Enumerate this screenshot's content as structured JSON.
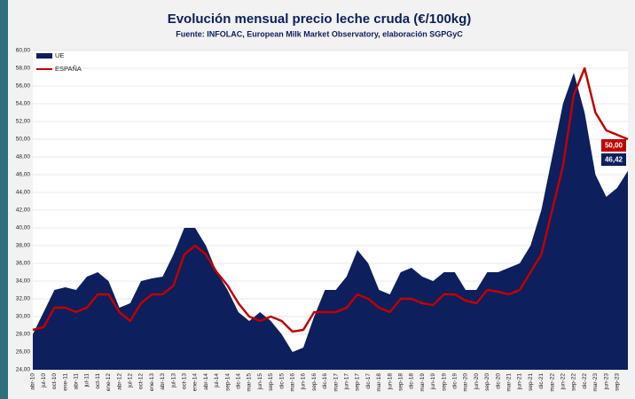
{
  "chart_data": {
    "type": "area_line",
    "title": "Evolución mensual precio leche cruda (€/100kg)",
    "subtitle": "Fuente: INFOLAC, European Milk Market Observatory,  elaboración SGPGyC",
    "categories": [
      "abr-10",
      "jul-10",
      "oct-10",
      "ene-11",
      "abr-11",
      "jul-11",
      "oct-11",
      "ene-12",
      "abr-12",
      "jul-12",
      "oct-12",
      "ene-13",
      "abr-13",
      "jul-13",
      "oct-13",
      "ene-14",
      "abr-14",
      "jul-14",
      "sep-14",
      "dic-14",
      "mar-15",
      "jun-15",
      "sep-15",
      "dic-15",
      "mar-16",
      "jun-16",
      "sep-16",
      "dic-16",
      "mar-17",
      "jun-17",
      "sep-17",
      "dic-17",
      "mar-18",
      "jun-18",
      "sep-18",
      "dic-18",
      "mar-19",
      "jun-19",
      "sep-19",
      "dic-19",
      "mar-20",
      "jun-20",
      "sep-20",
      "dic-20",
      "mar-21",
      "jun-21",
      "sep-21",
      "dic-21",
      "mar-22",
      "jun-22",
      "sep-22",
      "dic-22",
      "mar-23",
      "jun-23",
      "sep-23",
      null
    ],
    "series": [
      {
        "name": "UE",
        "color": "#0d1f5c",
        "kind": "area",
        "values": [
          28.0,
          30.5,
          33,
          33.3,
          33,
          34.5,
          35,
          34,
          31,
          31.5,
          34,
          34.3,
          34.5,
          37,
          40,
          40,
          38,
          35,
          33,
          30.5,
          29.5,
          30.5,
          29.5,
          28,
          26,
          26.5,
          30,
          33,
          33,
          34.5,
          37.5,
          36,
          33,
          32.5,
          35,
          35.5,
          34.5,
          34,
          35,
          35,
          33,
          33,
          35,
          35,
          35.5,
          36,
          38,
          42,
          48,
          54,
          57.5,
          53,
          46,
          43.5,
          44.5,
          46.42
        ],
        "value_labels": [
          null,
          null,
          null,
          null,
          null,
          null,
          null,
          null,
          null,
          null,
          null,
          null,
          null,
          null,
          null,
          null,
          null,
          null,
          null,
          null,
          null,
          null,
          null,
          null,
          null,
          null,
          null,
          null,
          null,
          null,
          null,
          null,
          null,
          null,
          null,
          null,
          null,
          null,
          null,
          null,
          null,
          null,
          null,
          null,
          null,
          null,
          null,
          null,
          null,
          null,
          null,
          null,
          null,
          null,
          null,
          "46,42"
        ]
      },
      {
        "name": "ESPAÑA",
        "color": "#c00000",
        "kind": "line",
        "values": [
          28.5,
          28.8,
          31,
          31,
          30.5,
          31,
          32.5,
          32.5,
          30.5,
          29.5,
          31.5,
          32.5,
          32.5,
          33.5,
          37,
          38,
          37,
          35,
          33.5,
          31.5,
          30,
          29.5,
          30,
          29.5,
          28.3,
          28.5,
          30.5,
          30.5,
          30.5,
          31,
          32.5,
          32,
          31,
          30.5,
          32,
          32,
          31.5,
          31.3,
          32.5,
          32.5,
          31.8,
          31.5,
          33,
          32.8,
          32.5,
          33,
          35,
          37,
          42,
          47,
          55,
          58,
          53,
          51,
          50.5,
          50.0
        ],
        "value_labels": [
          null,
          null,
          null,
          null,
          null,
          null,
          null,
          null,
          null,
          null,
          null,
          null,
          null,
          null,
          null,
          null,
          null,
          null,
          null,
          null,
          null,
          null,
          null,
          null,
          null,
          null,
          null,
          null,
          null,
          null,
          null,
          null,
          null,
          null,
          null,
          null,
          null,
          null,
          null,
          null,
          null,
          null,
          null,
          null,
          null,
          null,
          null,
          null,
          null,
          null,
          null,
          null,
          null,
          null,
          null,
          "50,00"
        ]
      }
    ],
    "ylim": [
      24,
      60
    ],
    "yticks": [
      {
        "value": 24,
        "label": "24,00"
      },
      {
        "value": 26,
        "label": "26,00"
      },
      {
        "value": 28,
        "label": "28,00"
      },
      {
        "value": 30,
        "label": "30,00"
      },
      {
        "value": 32,
        "label": "32,00"
      },
      {
        "value": 34,
        "label": "34,00"
      },
      {
        "value": 36,
        "label": "36,00"
      },
      {
        "value": 38,
        "label": "38,00"
      },
      {
        "value": 40,
        "label": "40,00"
      },
      {
        "value": 42,
        "label": "42,00"
      },
      {
        "value": 44,
        "label": "44,00"
      },
      {
        "value": 46,
        "label": "46,00"
      },
      {
        "value": 48,
        "label": "48,00"
      },
      {
        "value": 50,
        "label": "50,00"
      },
      {
        "value": 52,
        "label": "52,00"
      },
      {
        "value": 54,
        "label": "54,00"
      },
      {
        "value": 56,
        "label": "56,00"
      },
      {
        "value": 58,
        "label": "58,00"
      },
      {
        "value": 60,
        "label": "60,00"
      }
    ],
    "grid": true,
    "legend": "top-left"
  }
}
